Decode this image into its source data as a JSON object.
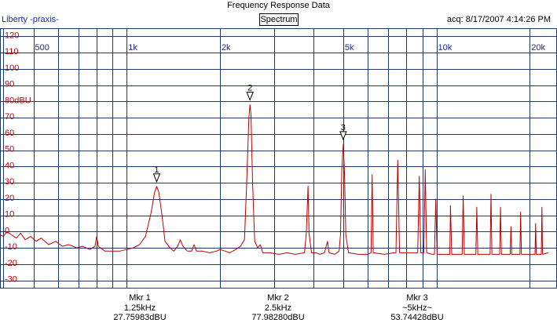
{
  "window": {
    "title": "Frequency Response Data",
    "app_name": "Liberty -praxis-",
    "mode_button": "Spectrum",
    "acquired": "acq: 8/17/2007 4:14:26 PM"
  },
  "colors": {
    "axis_text": "#c00000",
    "freq_text": "#1e2a9a",
    "grid": "#1e3a6b",
    "trace": "#c00000"
  },
  "chart_data": {
    "type": "line",
    "x_scale": "log",
    "x_range": [
      390,
      24500
    ],
    "y_range": [
      -35,
      125
    ],
    "x_ticks": [
      {
        "label": "500",
        "value": 500
      },
      {
        "label": "1k",
        "value": 1000
      },
      {
        "label": "2k",
        "value": 2000
      },
      {
        "label": "5k",
        "value": 5000
      },
      {
        "label": "10k",
        "value": 10000
      },
      {
        "label": "20k",
        "value": 20000
      }
    ],
    "y_ticks": [
      {
        "label": "120",
        "value": 120
      },
      {
        "label": "110",
        "value": 110
      },
      {
        "label": "100",
        "value": 100
      },
      {
        "label": "90",
        "value": 90
      },
      {
        "label": "80dBU",
        "value": 80
      },
      {
        "label": "70",
        "value": 70
      },
      {
        "label": "60",
        "value": 60
      },
      {
        "label": "50",
        "value": 50
      },
      {
        "label": "40",
        "value": 40
      },
      {
        "label": "30",
        "value": 30
      },
      {
        "label": "20",
        "value": 20
      },
      {
        "label": "10",
        "value": 10
      },
      {
        "label": "0",
        "value": 0
      },
      {
        "label": "-10",
        "value": -10
      },
      {
        "label": "-20",
        "value": -20
      },
      {
        "label": "-30",
        "value": -30
      }
    ],
    "series": [
      {
        "points": [
          [
            390,
            -2
          ],
          [
            400,
            -3
          ],
          [
            410,
            0
          ],
          [
            425,
            -2
          ],
          [
            440,
            -4
          ],
          [
            455,
            -1
          ],
          [
            470,
            -5
          ],
          [
            490,
            -3
          ],
          [
            510,
            -6
          ],
          [
            530,
            -4
          ],
          [
            560,
            -8
          ],
          [
            590,
            -6
          ],
          [
            620,
            -9
          ],
          [
            650,
            -8
          ],
          [
            690,
            -10
          ],
          [
            720,
            -9
          ],
          [
            760,
            -11
          ],
          [
            790,
            -9
          ],
          [
            800,
            -3
          ],
          [
            810,
            -9
          ],
          [
            850,
            -12
          ],
          [
            900,
            -12
          ],
          [
            950,
            -12
          ],
          [
            1000,
            -11
          ],
          [
            1050,
            -10
          ],
          [
            1100,
            -8
          ],
          [
            1150,
            -3
          ],
          [
            1200,
            12
          ],
          [
            1230,
            24
          ],
          [
            1250,
            27.8
          ],
          [
            1270,
            24
          ],
          [
            1300,
            10
          ],
          [
            1330,
            -6
          ],
          [
            1380,
            -10
          ],
          [
            1420,
            -12
          ],
          [
            1460,
            -9
          ],
          [
            1490,
            -5
          ],
          [
            1520,
            -9
          ],
          [
            1570,
            -12
          ],
          [
            1620,
            -12
          ],
          [
            1650,
            -8
          ],
          [
            1680,
            -12
          ],
          [
            1750,
            -12
          ],
          [
            1850,
            -13
          ],
          [
            1950,
            -12
          ],
          [
            2000,
            -11
          ],
          [
            2080,
            -12
          ],
          [
            2150,
            -13
          ],
          [
            2250,
            -11
          ],
          [
            2330,
            -9
          ],
          [
            2400,
            -5
          ],
          [
            2440,
            30
          ],
          [
            2480,
            70
          ],
          [
            2500,
            78
          ],
          [
            2520,
            72
          ],
          [
            2550,
            30
          ],
          [
            2590,
            -6
          ],
          [
            2650,
            -10
          ],
          [
            2700,
            -8
          ],
          [
            2750,
            -13
          ],
          [
            2900,
            -13
          ],
          [
            3100,
            -14
          ],
          [
            3300,
            -13
          ],
          [
            3500,
            -14
          ],
          [
            3750,
            -13
          ],
          [
            3800,
            -1
          ],
          [
            3850,
            28
          ],
          [
            3880,
            -1
          ],
          [
            3950,
            -13
          ],
          [
            4100,
            -13
          ],
          [
            4200,
            -14
          ],
          [
            4350,
            -13
          ],
          [
            4450,
            -6
          ],
          [
            4500,
            -13
          ],
          [
            4700,
            -14
          ],
          [
            4850,
            -12
          ],
          [
            4900,
            -2
          ],
          [
            4950,
            38
          ],
          [
            5000,
            53.7
          ],
          [
            5050,
            35
          ],
          [
            5100,
            -2
          ],
          [
            5200,
            -13
          ],
          [
            5600,
            -14
          ],
          [
            6000,
            -14
          ],
          [
            6150,
            -13
          ],
          [
            6200,
            35
          ],
          [
            6250,
            -13
          ],
          [
            6800,
            -14
          ],
          [
            7300,
            -13
          ],
          [
            7400,
            -13
          ],
          [
            7500,
            44
          ],
          [
            7600,
            -13
          ],
          [
            8300,
            -13
          ],
          [
            8700,
            -13
          ],
          [
            8800,
            34
          ],
          [
            8900,
            -13
          ],
          [
            9100,
            -13
          ],
          [
            9200,
            38
          ],
          [
            9300,
            -13
          ],
          [
            9700,
            -14
          ],
          [
            9850,
            -14
          ],
          [
            9950,
            20
          ],
          [
            10050,
            -14
          ],
          [
            10500,
            -14
          ],
          [
            11050,
            -14
          ],
          [
            11100,
            16
          ],
          [
            11200,
            -14
          ],
          [
            12100,
            -14
          ],
          [
            12200,
            22
          ],
          [
            12300,
            -14
          ],
          [
            13400,
            -14
          ],
          [
            13500,
            15
          ],
          [
            13600,
            -14
          ],
          [
            14900,
            -14
          ],
          [
            15000,
            23
          ],
          [
            15100,
            -14
          ],
          [
            16000,
            -14
          ],
          [
            16100,
            15
          ],
          [
            16200,
            -14
          ],
          [
            17300,
            -14
          ],
          [
            17400,
            3
          ],
          [
            17500,
            -14
          ],
          [
            18600,
            -14
          ],
          [
            18700,
            12
          ],
          [
            18800,
            -14
          ],
          [
            20800,
            -14
          ],
          [
            20900,
            5
          ],
          [
            21000,
            -14
          ],
          [
            21800,
            -14
          ],
          [
            21900,
            15
          ],
          [
            22000,
            -14
          ],
          [
            23000,
            -13
          ]
        ]
      }
    ],
    "markers": [
      {
        "id": "1",
        "x": 1250,
        "y": 27.75983
      },
      {
        "id": "2",
        "x": 2500,
        "y": 77.9828
      },
      {
        "id": "3",
        "x": 5000,
        "y": 53.74428
      }
    ],
    "marker_readouts": [
      {
        "name": "Mkr 1",
        "freq": "1.25kHz",
        "level": "27.75983dBU"
      },
      {
        "name": "Mkr 2",
        "freq": "2.5kHz",
        "level": "77.98280dBU"
      },
      {
        "name": "Mkr 3",
        "freq": "~5kHz~",
        "level": "53.74428dBU"
      }
    ]
  }
}
